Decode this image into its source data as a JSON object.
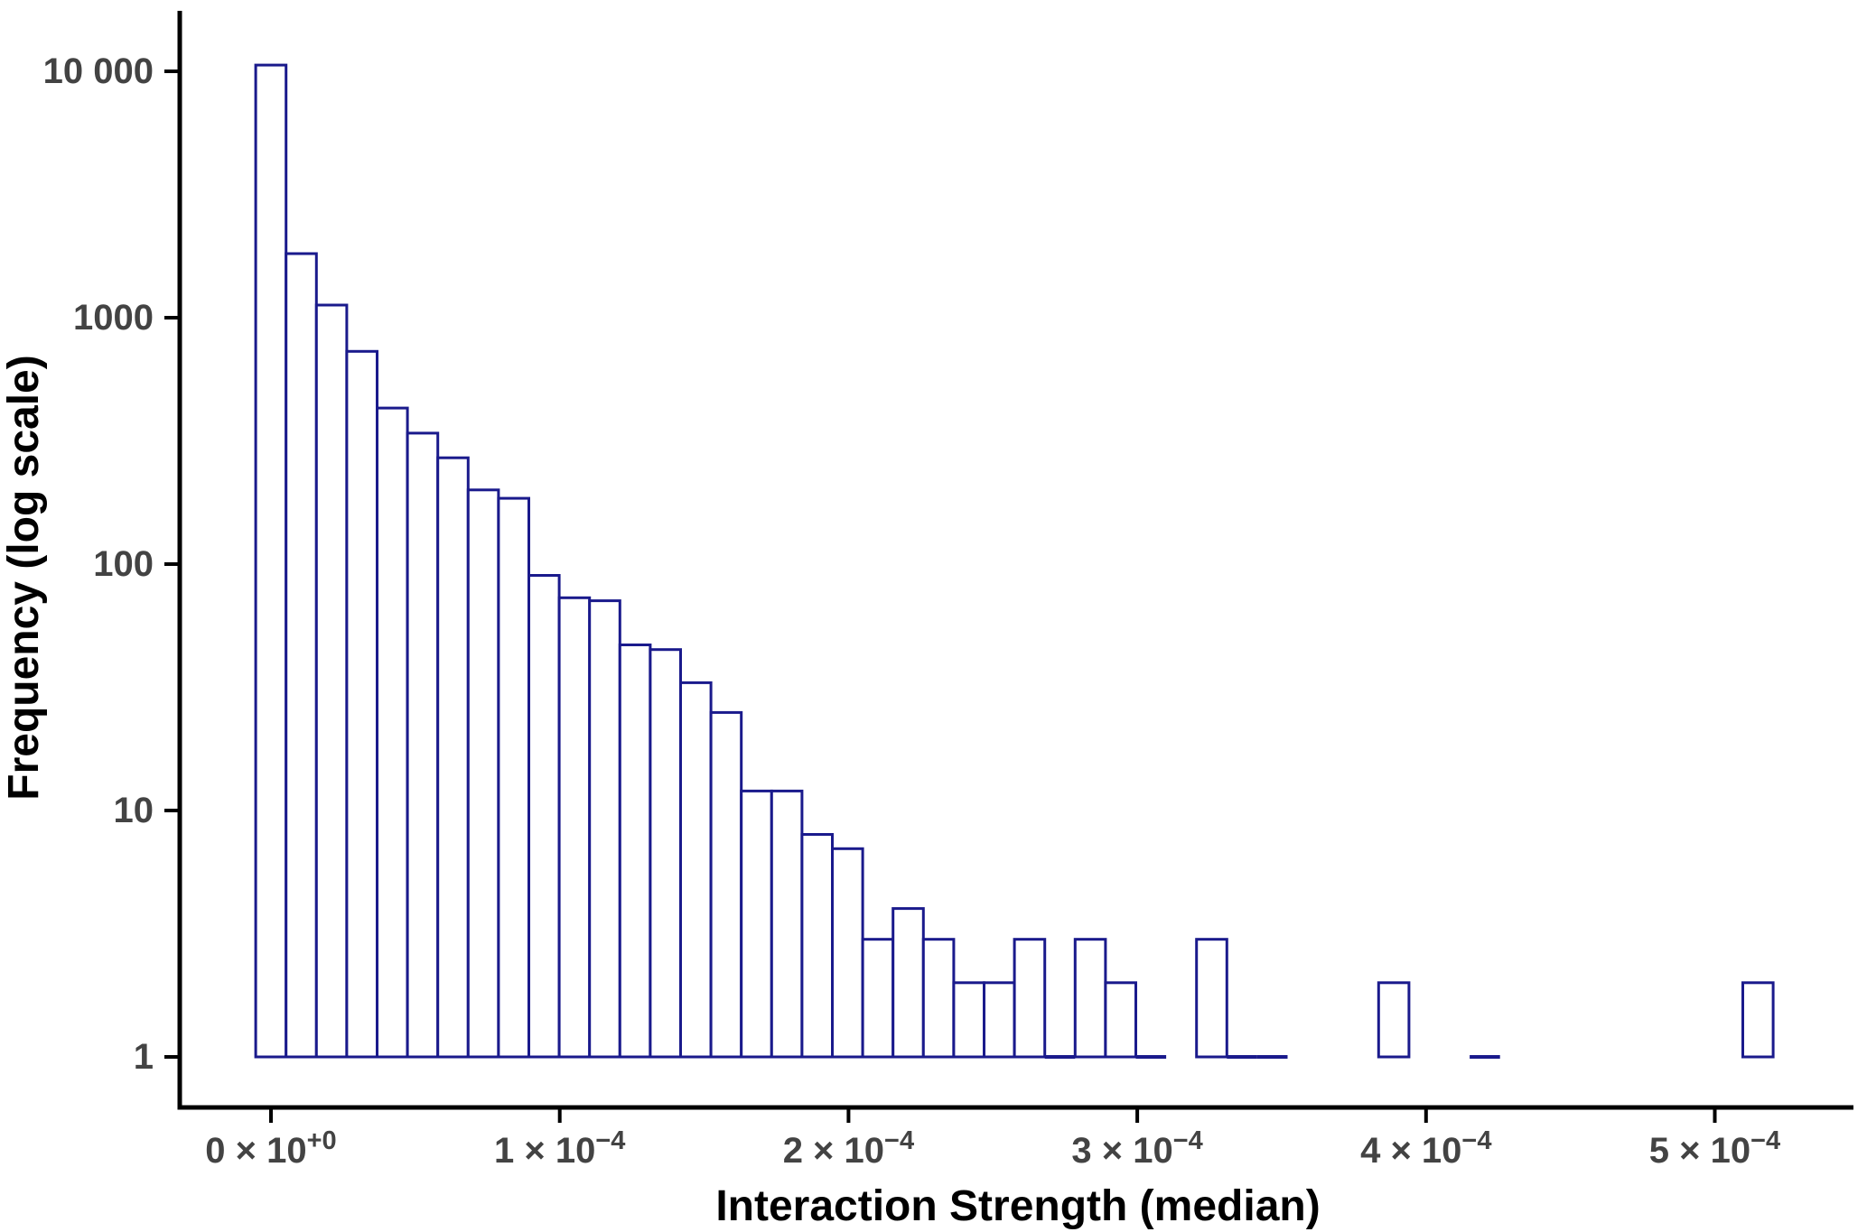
{
  "chart_data": {
    "type": "bar",
    "subtype": "histogram",
    "title": "",
    "xlabel": "Interaction Strength (median)",
    "ylabel": "Frequency (log scale)",
    "x_scale": "linear",
    "y_scale": "log10",
    "grid": "off",
    "legend": "none",
    "xlim": [
      -3.2e-05,
      0.000553
    ],
    "ylim_log": [
      0.62,
      17000
    ],
    "first_bin_left": -5.3e-06,
    "bin_width": 1.051e-05,
    "counts": [
      10600,
      1820,
      1125,
      730,
      430,
      340,
      270,
      200,
      185,
      90,
      73,
      71,
      47,
      45,
      33,
      25,
      12,
      12,
      8,
      7,
      3,
      4,
      3,
      2,
      2,
      3,
      1,
      3,
      2,
      1,
      0,
      3,
      1,
      1,
      0,
      0,
      0,
      2,
      0,
      0,
      1,
      0,
      0,
      0,
      0,
      0,
      0,
      0,
      0,
      2
    ],
    "x_ticks": [
      {
        "value": 0,
        "mantissa": "0 × 10",
        "exponent": "+0"
      },
      {
        "value": 0.0001,
        "mantissa": "1 × 10",
        "exponent": "−4"
      },
      {
        "value": 0.0002,
        "mantissa": "2 × 10",
        "exponent": "−4"
      },
      {
        "value": 0.0003,
        "mantissa": "3 × 10",
        "exponent": "−4"
      },
      {
        "value": 0.0004,
        "mantissa": "4 × 10",
        "exponent": "−4"
      },
      {
        "value": 0.0005,
        "mantissa": "5 × 10",
        "exponent": "−4"
      }
    ],
    "y_ticks": [
      {
        "value": 10000,
        "label": "10 000"
      },
      {
        "value": 1000,
        "label": "1000"
      },
      {
        "value": 100,
        "label": "100"
      },
      {
        "value": 10,
        "label": "10"
      },
      {
        "value": 1,
        "label": "1"
      }
    ],
    "style": {
      "bar_fill": "#ffffff",
      "bar_stroke": "#1a1a8c",
      "axis_color": "#000000",
      "tick_color": "#000000",
      "tick_label_color": "#434343",
      "background": "#ffffff"
    }
  }
}
